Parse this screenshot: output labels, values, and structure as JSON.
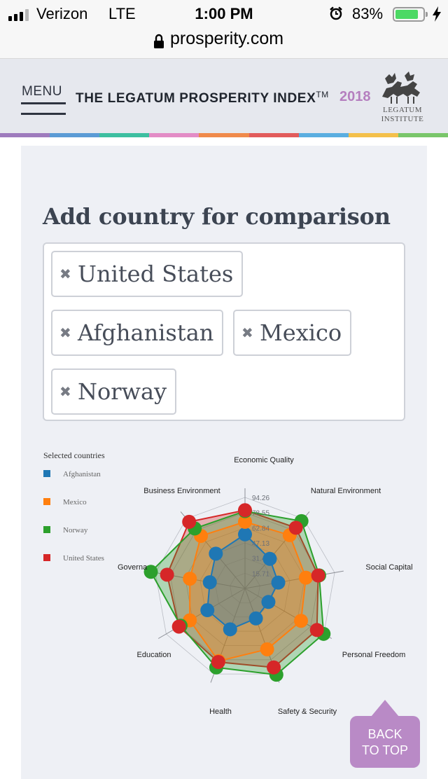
{
  "status_bar": {
    "carrier": "Verizon",
    "network": "LTE",
    "time": "1:00 PM",
    "battery_percent": "83%",
    "battery_level": 0.83,
    "battery_color": "#4cd964"
  },
  "browser": {
    "url": "prosperity.com",
    "lock_icon": "lock-icon"
  },
  "header": {
    "menu_label": "MENU",
    "title": "THE LEGATUM PROSPERITY INDEX",
    "trademark": "TM",
    "year": "2018",
    "year_color": "#b57fbf",
    "logo_line1": "LEGATUM",
    "logo_line2": "INSTITUTE",
    "strip_colors": [
      "#9e7bbd",
      "#5b9bd5",
      "#3dbfa0",
      "#e38cc6",
      "#f08a4b",
      "#e25b5b",
      "#5aaee0",
      "#f4c04a",
      "#79c66a"
    ]
  },
  "compare": {
    "heading": "Add country for comparison",
    "selected": [
      {
        "remove_icon": "✖",
        "name": "United States"
      },
      {
        "remove_icon": "✖",
        "name": "Afghanistan"
      },
      {
        "remove_icon": "✖",
        "name": "Mexico"
      },
      {
        "remove_icon": "✖",
        "name": "Norway"
      }
    ]
  },
  "chart_data": {
    "type": "radar",
    "legend_title": "Selected countries",
    "axes": [
      "Economic Quality",
      "Natural Environment",
      "Social Capital",
      "Personal Freedom",
      "Safety & Security",
      "Health",
      "Education",
      "Governance",
      "Business Environment"
    ],
    "axes_display": [
      "Economic Quality",
      "Natural Environment",
      "Social Capital",
      "Personal Freedom",
      "Safety & Security",
      "Health",
      "Education",
      "Governa",
      "Business Environment"
    ],
    "tick_labels": [
      "94.26",
      "78.55",
      "62.84",
      "47.13",
      "31.42",
      "15.71"
    ],
    "range": [
      0,
      94.26
    ],
    "series": [
      {
        "name": "Afghanistan",
        "color": "#1f77b4",
        "values": [
          56,
          40,
          35,
          28,
          33,
          45,
          45,
          37,
          47
        ]
      },
      {
        "name": "Mexico",
        "color": "#ff7f0e",
        "values": [
          69,
          72,
          64,
          67,
          67,
          80,
          66,
          58,
          71
        ]
      },
      {
        "name": "Norway",
        "color": "#2ca02c",
        "values": [
          80,
          91,
          78,
          94,
          95,
          87,
          77,
          99,
          81
        ]
      },
      {
        "name": "United States",
        "color": "#d62728",
        "values": [
          81,
          82,
          77,
          86,
          87,
          81,
          79,
          82,
          90
        ]
      }
    ]
  },
  "back_to_top": {
    "line1": "BACK",
    "line2": "TO TOP",
    "color": "#b98ac6"
  }
}
